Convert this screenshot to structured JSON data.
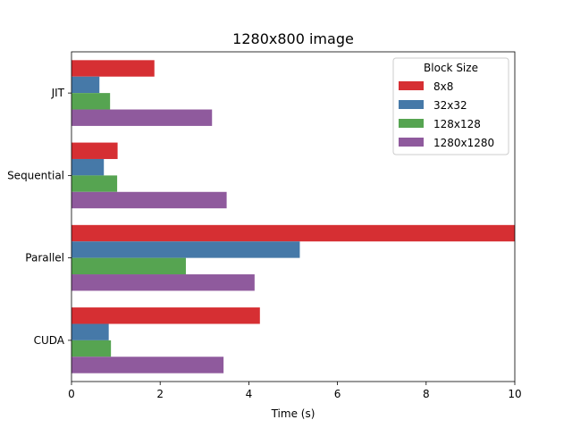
{
  "chart_data": {
    "type": "bar",
    "orientation": "horizontal",
    "title": "1280x800 image",
    "xlabel": "Time (s)",
    "ylabel": "",
    "xlim": [
      0,
      10
    ],
    "xticks": [
      0,
      2,
      4,
      6,
      8,
      10
    ],
    "categories": [
      "JIT",
      "Sequential",
      "Parallel",
      "CUDA"
    ],
    "legend": {
      "title": "Block Size",
      "position": "top-right"
    },
    "grid": false,
    "series": [
      {
        "name": "8x8",
        "color": "#d62f33",
        "values": [
          1.87,
          1.04,
          10.0,
          4.25
        ]
      },
      {
        "name": "32x32",
        "color": "#4679a8",
        "values": [
          0.63,
          0.73,
          5.15,
          0.84
        ]
      },
      {
        "name": "128x128",
        "color": "#56a451",
        "values": [
          0.87,
          1.03,
          2.58,
          0.89
        ]
      },
      {
        "name": "1280x1280",
        "color": "#8f5a9d",
        "values": [
          3.17,
          3.5,
          4.13,
          3.43
        ]
      }
    ]
  }
}
